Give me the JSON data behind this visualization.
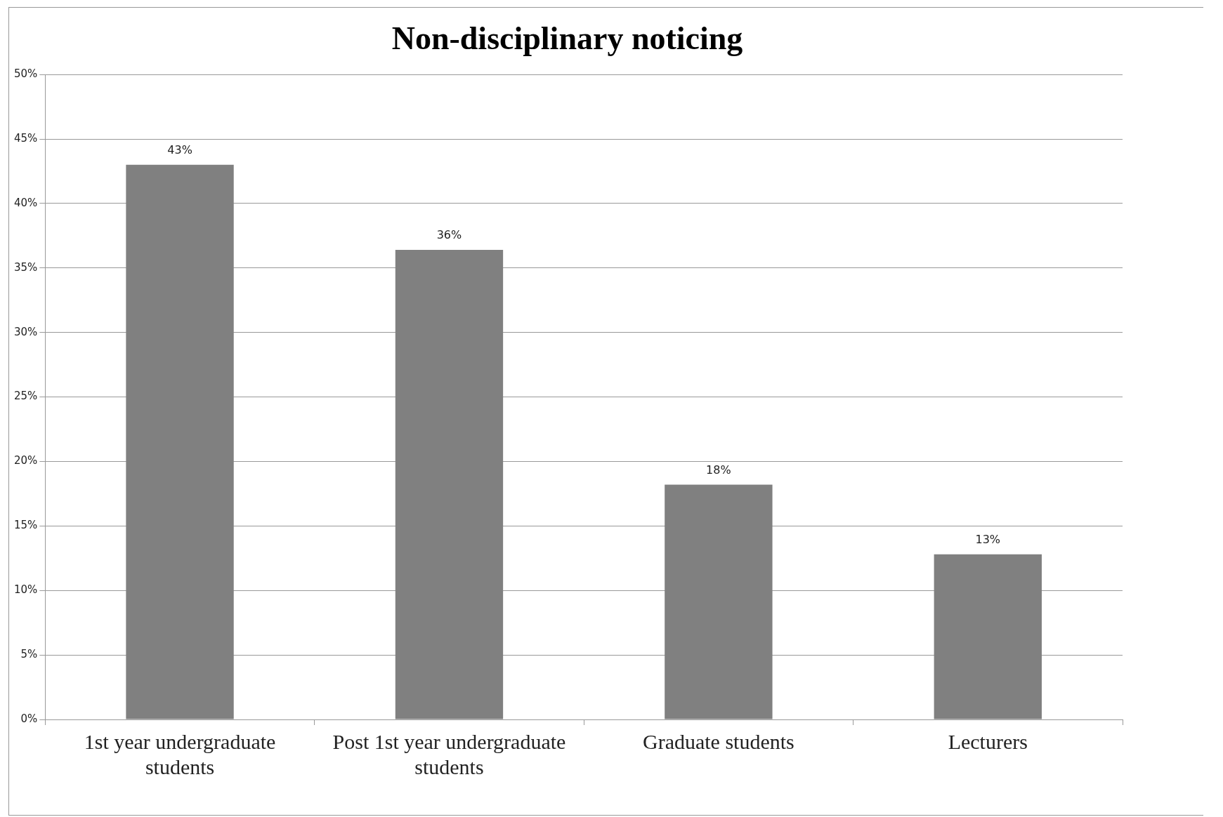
{
  "chart_data": {
    "type": "bar",
    "title": "Non-disciplinary noticing",
    "categories": [
      "1st year undergraduate students",
      "Post 1st year undergraduate students",
      "Graduate students",
      "Lecturers"
    ],
    "values": [
      43.0,
      36.4,
      18.2,
      12.8
    ],
    "value_labels": [
      "43%",
      "36%",
      "18%",
      "13%"
    ],
    "color": "#808080",
    "ylim": [
      0,
      50
    ],
    "yticks": [
      {
        "value": 0,
        "label": "0%"
      },
      {
        "value": 5,
        "label": "5%"
      },
      {
        "value": 10,
        "label": "10%"
      },
      {
        "value": 15,
        "label": "15%"
      },
      {
        "value": 20,
        "label": "20%"
      },
      {
        "value": 25,
        "label": "25%"
      },
      {
        "value": 30,
        "label": "30%"
      },
      {
        "value": 35,
        "label": "35%"
      },
      {
        "value": 40,
        "label": "40%"
      },
      {
        "value": 45,
        "label": "45%"
      },
      {
        "value": 50,
        "label": "50%"
      }
    ],
    "grid": "y",
    "legend": false
  }
}
